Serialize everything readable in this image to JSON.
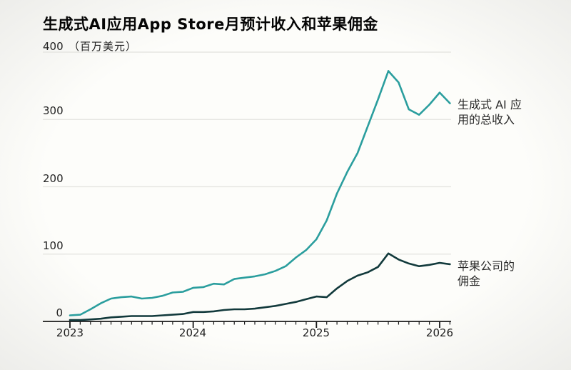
{
  "header": {
    "title": "生成式AI应用App Store月预计收入和苹果佣金"
  },
  "colors": {
    "revenue_line": "#2B9E9E",
    "commission_line": "#123A3C",
    "gridline": "#e2e2de",
    "axis": "#1a1a1a",
    "text": "#222222"
  },
  "annotations": [
    {
      "line1": "生成式 AI 应",
      "line2": "用的总收入"
    },
    {
      "line1": "苹果公司的",
      "line2": "佣金"
    }
  ],
  "chart_data": {
    "type": "line",
    "title": "生成式AI应用App Store月预计收入和苹果佣金",
    "unit_label": "（百万美元）",
    "xlabel": "",
    "ylabel": "百万美元",
    "ylim": [
      0,
      400
    ],
    "y_ticks": [
      0,
      100,
      200,
      300,
      400
    ],
    "y_tick_labels": [
      "0",
      "100",
      "200",
      "300",
      "400"
    ],
    "x_tick_labels": [
      "2023",
      "2024",
      "2025",
      "2026"
    ],
    "x_start": "2023-01",
    "x_end": "2026-02",
    "x_unit": "month",
    "grid": "horizontal",
    "legend_position": "right-annotations",
    "series": [
      {
        "name": "生成式 AI 应用的总收入",
        "color": "#2B9E9E",
        "values": [
          9,
          10,
          18,
          27,
          34,
          36,
          37,
          34,
          35,
          38,
          43,
          44,
          50,
          51,
          56,
          55,
          63,
          65,
          67,
          70,
          75,
          82,
          95,
          106,
          122,
          150,
          190,
          222,
          250,
          290,
          330,
          372,
          355,
          315,
          307,
          322,
          340,
          324
        ]
      },
      {
        "name": "苹果公司的佣金",
        "color": "#123A3C",
        "values": [
          2,
          2,
          3,
          4,
          6,
          7,
          8,
          8,
          8,
          9,
          10,
          11,
          14,
          14,
          15,
          17,
          18,
          18,
          19,
          21,
          23,
          26,
          29,
          33,
          37,
          36,
          49,
          60,
          68,
          73,
          81,
          101,
          92,
          86,
          82,
          84,
          87,
          85
        ]
      }
    ]
  }
}
